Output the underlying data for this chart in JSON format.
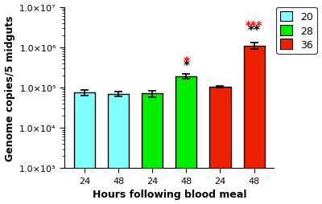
{
  "categories": [
    "24",
    "48",
    "24",
    "48",
    "24",
    "48"
  ],
  "values": [
    75000.0,
    70000.0,
    72000.0,
    190000.0,
    105000.0,
    1100000.0
  ],
  "errors": [
    12000.0,
    10000.0,
    13000.0,
    25000.0,
    7000,
    200000.0
  ],
  "bar_colors": [
    "#7fffff",
    "#7fffff",
    "#00ee00",
    "#00ee00",
    "#ee2200",
    "#ee2200"
  ],
  "ylabel": "Genome copies/5 midguts",
  "xlabel": "Hours following blood meal",
  "ylim_log": [
    1000.0,
    10000000.0
  ],
  "ytick_vals": [
    1000,
    10000,
    100000,
    1000000,
    10000000
  ],
  "ytick_labels": [
    "1.0×10³",
    "1.0×10⁴",
    "1.0×10⁵",
    "1.0×10⁶",
    "1.0×10⁷"
  ],
  "legend_labels": [
    "20",
    "28",
    "36"
  ],
  "legend_colors": [
    "#7fffff",
    "#00ee00",
    "#ee2200"
  ],
  "background_color": "#ffffff",
  "label_fontsize": 9,
  "tick_fontsize": 8,
  "legend_fontsize": 9
}
